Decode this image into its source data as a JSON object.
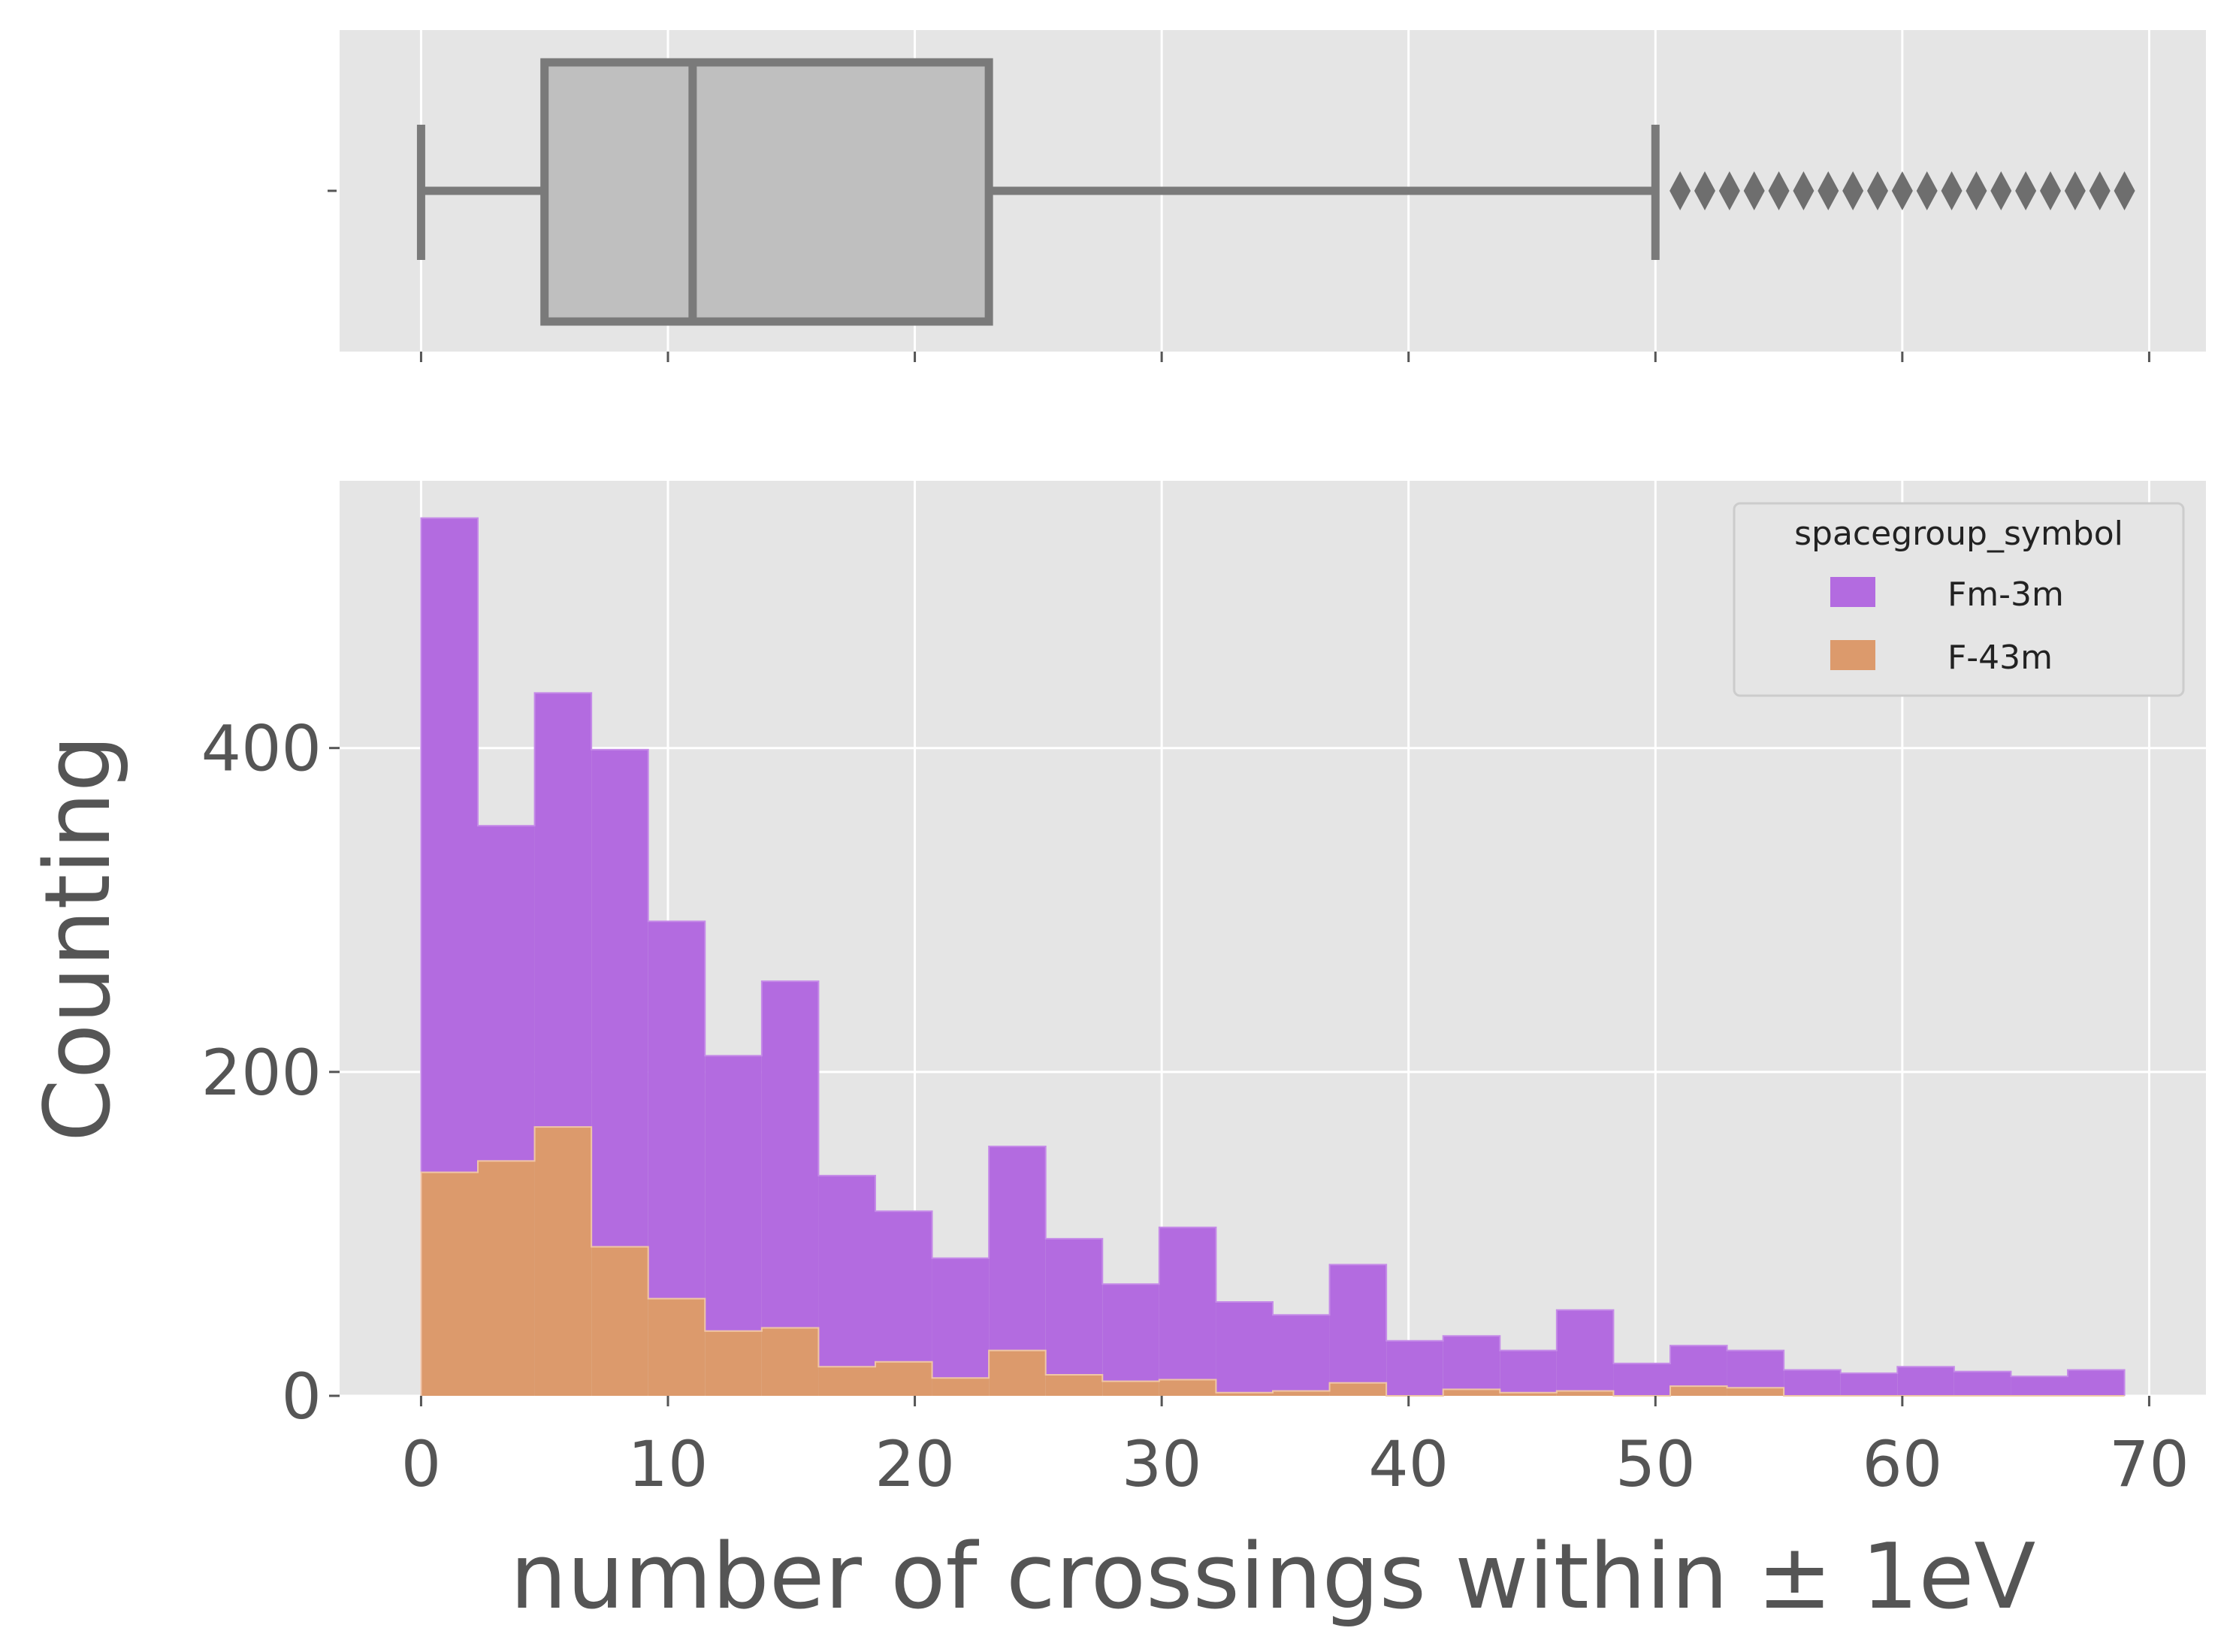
{
  "chart_data": [
    {
      "type": "box",
      "orientation": "horizontal",
      "grid": true,
      "stats": {
        "min": 0,
        "q1": 5,
        "median": 11,
        "q3": 23,
        "whisker_high": 50
      },
      "outliers": [
        51,
        52,
        53,
        54,
        55,
        56,
        57,
        58,
        59,
        60,
        61,
        62,
        63,
        64,
        65,
        66,
        67,
        68,
        69
      ],
      "xlim": [
        -3.3,
        72.3
      ],
      "xticks": [
        0,
        10,
        20,
        30,
        40,
        50,
        60,
        70
      ],
      "colors": {
        "box_face": "#bfbfbf",
        "box_edge": "#7a7a7a",
        "outlier": "#6e6e6e"
      }
    },
    {
      "type": "histogram",
      "stacked": true,
      "element": "step",
      "grid": true,
      "bin_edges": [
        0,
        2.3,
        4.6,
        6.9,
        9.2,
        11.5,
        13.8,
        16.1,
        18.4,
        20.7,
        23,
        25.3,
        27.6,
        29.9,
        32.2,
        34.5,
        36.8,
        39.1,
        41.4,
        43.7,
        46,
        48.3,
        50.6,
        52.9,
        55.2,
        57.5,
        59.8,
        62.1,
        64.4,
        66.7,
        69
      ],
      "xlabel": "number of crossings within ± 1eV",
      "ylabel": "Counting",
      "xlim": [
        -3.3,
        72.3
      ],
      "ylim": [
        0,
        565
      ],
      "xticks": [
        0,
        10,
        20,
        30,
        40,
        50,
        60,
        70
      ],
      "yticks": [
        0,
        200,
        400
      ],
      "legend": {
        "title": "spacegroup_symbol",
        "placement": "upper right"
      },
      "series": [
        {
          "name": "Fm-3m",
          "color": "#b36be0",
          "values": [
            404,
            207,
            268,
            307,
            233,
            170,
            214,
            118,
            93,
            74,
            126,
            84,
            60,
            94,
            56,
            47,
            73,
            34,
            33,
            26,
            50,
            20,
            25,
            23,
            16,
            14,
            18,
            15,
            12,
            16
          ]
        },
        {
          "name": "F-43m",
          "color": "#dc9a6c",
          "values": [
            138,
            145,
            166,
            92,
            60,
            40,
            42,
            18,
            21,
            11,
            28,
            13,
            9,
            10,
            2,
            3,
            8,
            0,
            4,
            2,
            3,
            0,
            6,
            5,
            0,
            0,
            0,
            0,
            0,
            0
          ]
        }
      ]
    }
  ]
}
